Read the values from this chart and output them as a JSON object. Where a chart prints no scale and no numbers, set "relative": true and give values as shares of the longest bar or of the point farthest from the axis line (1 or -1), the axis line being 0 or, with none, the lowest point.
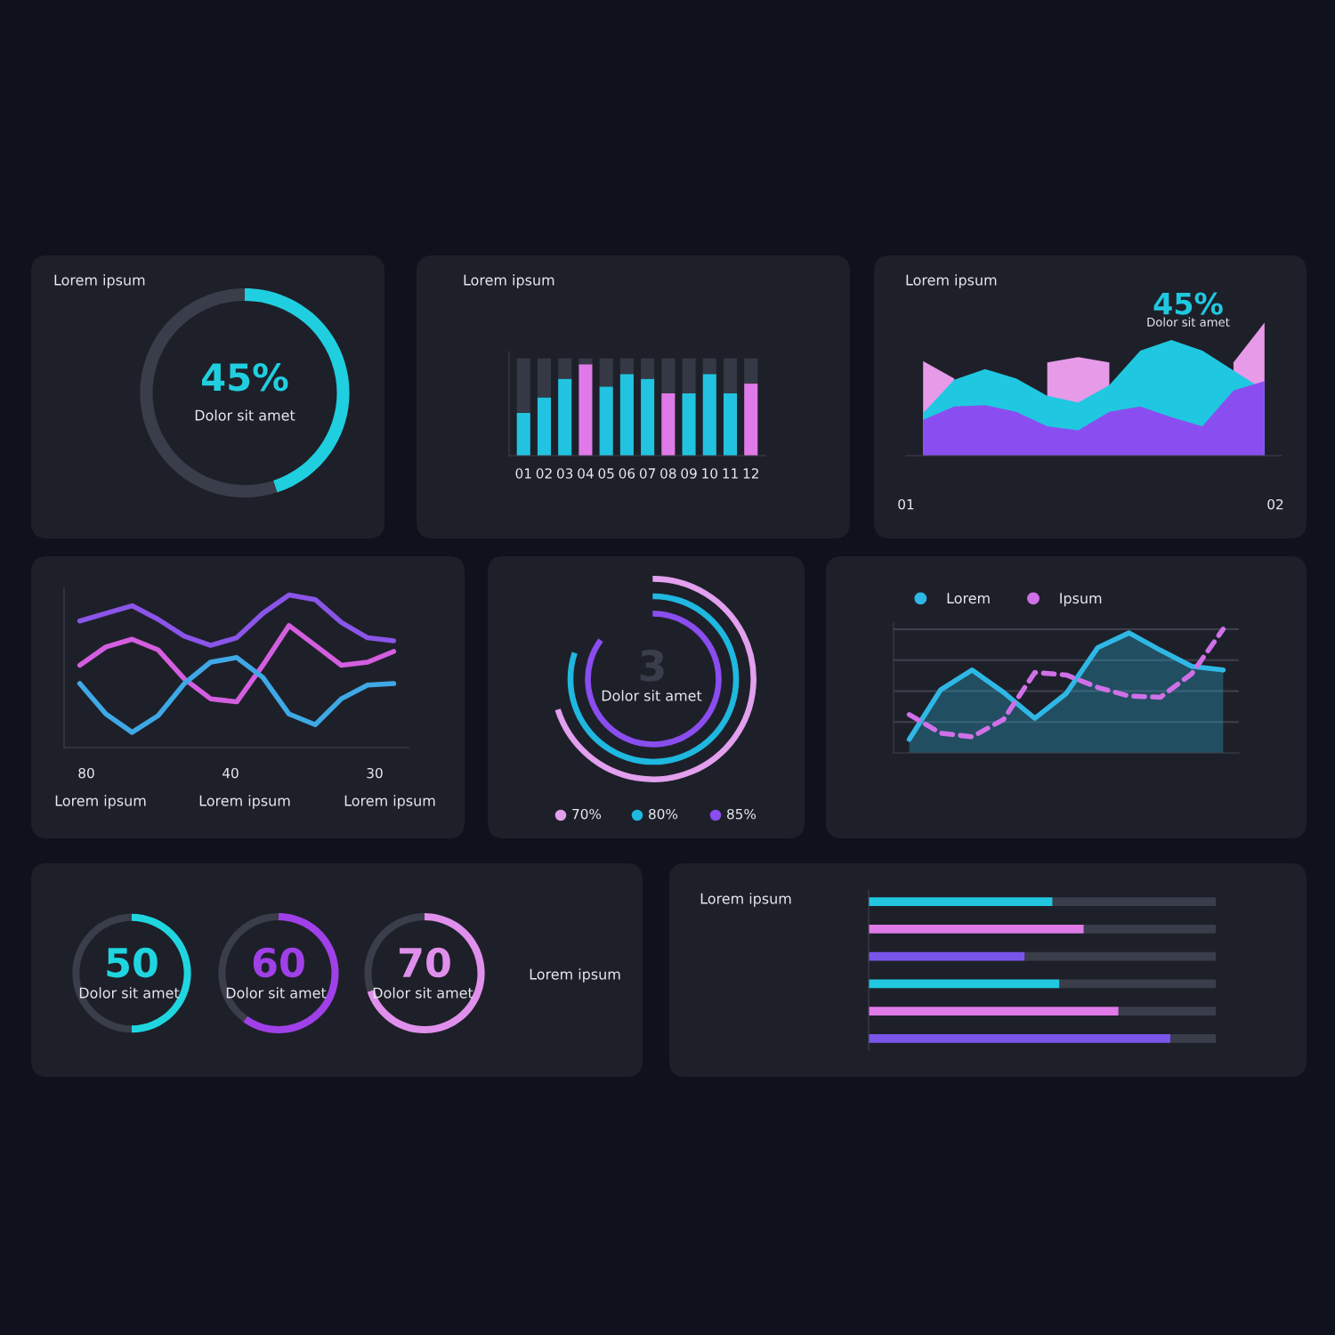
{
  "chart_data": [
    {
      "type": "donut",
      "title": "Lorem ipsum",
      "categories": [
        null,
        null
      ],
      "values": [
        45,
        55
      ],
      "colors": [
        "#1fcfe0",
        "#3a3d4a"
      ],
      "value_labels": [
        "45%",
        null
      ],
      "annotations": [
        "Dolor sit amet"
      ]
    },
    {
      "type": "bar",
      "title": "Lorem ipsum",
      "relative": true,
      "stacked": true,
      "categories": [
        "01",
        "02",
        "03",
        "04",
        "05",
        "06",
        "07",
        "08",
        "09",
        "10",
        "11",
        "12"
      ],
      "series": [
        {
          "colors": [
            "#22c3e0",
            "#22c3e0",
            "#22c3e0",
            "#e07ae8",
            "#22c3e0",
            "#22c3e0",
            "#22c3e0",
            "#e07ae8",
            "#22c3e0",
            "#22c3e0",
            "#22c3e0",
            "#e07ae8"
          ],
          "values": [
            0.44,
            0.6,
            0.79,
            0.94,
            0.71,
            0.84,
            0.79,
            0.64,
            0.64,
            0.84,
            0.64,
            0.74
          ]
        },
        {
          "color": "#353845",
          "values": [
            0.56,
            0.4,
            0.21,
            0.06,
            0.29,
            0.16,
            0.21,
            0.36,
            0.36,
            0.16,
            0.36,
            0.26
          ]
        }
      ]
    },
    {
      "type": "area",
      "title": "Lorem ipsum",
      "relative": true,
      "tick_labels": false,
      "categories": [
        null,
        null,
        null,
        null,
        null,
        null,
        null,
        null,
        null,
        null,
        null,
        null
      ],
      "series": [
        {
          "color": "#e69ae8",
          "values": [
            0.71,
            0.58,
            null,
            null,
            0.7,
            0.74,
            0.7,
            null,
            null,
            null,
            0.7,
            1.0
          ]
        },
        {
          "color": "#1fc8e0",
          "values": [
            0.32,
            0.57,
            0.65,
            0.58,
            0.45,
            0.4,
            0.53,
            0.79,
            0.87,
            0.79,
            0.64,
            0.49
          ]
        },
        {
          "color": "#8a4ef0",
          "values": [
            0.27,
            0.37,
            0.38,
            0.33,
            0.22,
            0.19,
            0.33,
            0.37,
            0.29,
            0.22,
            0.49,
            0.56
          ]
        }
      ],
      "annotations": [
        "45%",
        "Dolor sit amet",
        "01",
        "02"
      ]
    },
    {
      "type": "line",
      "relative": true,
      "tick_labels": false,
      "categories": [
        null,
        null,
        null,
        null,
        null,
        null,
        null,
        null,
        null,
        null,
        null,
        null,
        null
      ],
      "series": [
        {
          "color": "#8a55e8",
          "values": [
            0.83,
            0.88,
            0.93,
            0.84,
            0.73,
            0.67,
            0.72,
            0.88,
            1.0,
            0.97,
            0.82,
            0.72,
            0.7
          ]
        },
        {
          "color": "#d45ee0",
          "values": [
            0.54,
            0.66,
            0.71,
            0.64,
            0.45,
            0.32,
            0.3,
            0.54,
            0.8,
            0.67,
            0.54,
            0.56,
            0.63
          ]
        },
        {
          "color": "#3fa8e6",
          "values": [
            0.42,
            0.22,
            0.1,
            0.21,
            0.42,
            0.56,
            0.59,
            0.46,
            0.22,
            0.15,
            0.32,
            0.41,
            0.42
          ]
        }
      ],
      "annotations": [
        "80",
        "40",
        "30",
        "Lorem ipsum",
        "Lorem ipsum",
        "Lorem ipsum"
      ]
    },
    {
      "type": "other",
      "values": [
        70,
        80,
        85
      ],
      "value_labels": [
        "70%",
        "80%",
        "85%"
      ],
      "colors": [
        "#e2a0ee",
        "#1fb8e0",
        "#8a4ef0"
      ],
      "annotations": [
        "3",
        "Dolor sit amet"
      ]
    },
    {
      "type": "line",
      "relative": true,
      "tick_labels": false,
      "grid": "y",
      "legend": "top left",
      "categories": [
        null,
        null,
        null,
        null,
        null,
        null,
        null,
        null,
        null,
        null,
        null
      ],
      "series": [
        {
          "name": "Lorem",
          "type": "area",
          "color": "#2fb8e6",
          "values": [
            0.11,
            0.51,
            0.67,
            0.49,
            0.28,
            0.48,
            0.85,
            0.97,
            0.83,
            0.7,
            0.67
          ]
        },
        {
          "name": "Ipsum",
          "color": "#d070e8",
          "line_style": "dashed",
          "values": [
            0.31,
            0.16,
            0.13,
            0.27,
            0.65,
            0.63,
            0.53,
            0.46,
            0.45,
            0.64,
            1.0
          ]
        }
      ]
    },
    {
      "type": "donut",
      "categories": [
        null,
        null
      ],
      "values": [
        50,
        50
      ],
      "colors": [
        "#1fd6e0",
        "#3a3d4a"
      ],
      "value_labels": [
        "50",
        null
      ],
      "annotations": [
        "Dolor sit amet"
      ]
    },
    {
      "type": "donut",
      "categories": [
        null,
        null
      ],
      "values": [
        60,
        40
      ],
      "colors": [
        "#a040e8",
        "#3a3d4a"
      ],
      "value_labels": [
        "60",
        null
      ],
      "annotations": [
        "Dolor sit amet"
      ]
    },
    {
      "type": "donut",
      "categories": [
        null,
        null
      ],
      "values": [
        70,
        30
      ],
      "colors": [
        "#e090ec",
        "#3a3d4a"
      ],
      "value_labels": [
        "70",
        null
      ],
      "annotations": [
        "Dolor sit amet",
        "Lorem ipsum"
      ]
    },
    {
      "type": "bar",
      "annotations": [
        "Lorem ipsum"
      ],
      "relative": true,
      "stacked": true,
      "orientation": "horizontal",
      "tick_labels": false,
      "categories": [
        null,
        null,
        null,
        null,
        null,
        null
      ],
      "series": [
        {
          "colors": [
            "#22c8e0",
            "#e07ae8",
            "#7a55ea",
            "#22c8e0",
            "#e07ae8",
            "#7a55ea"
          ],
          "values": [
            0.53,
            0.62,
            0.45,
            0.55,
            0.72,
            0.87
          ]
        },
        {
          "color": "#3a3d4a",
          "values": [
            0.47,
            0.38,
            0.55,
            0.45,
            0.28,
            0.13
          ]
        }
      ]
    }
  ]
}
